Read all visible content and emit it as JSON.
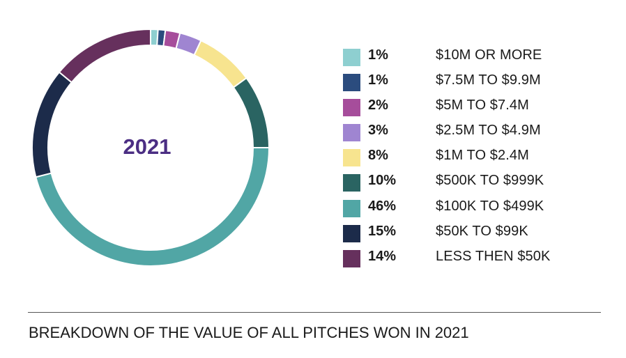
{
  "chart_data": {
    "type": "pie",
    "center_label": "2021",
    "slices": [
      {
        "label": "$10M OR MORE",
        "percent_label": "1%",
        "value": 1,
        "color": "#8ecfd0"
      },
      {
        "label": "$7.5M TO $9.9M",
        "percent_label": "1%",
        "value": 1,
        "color": "#2b4c7e"
      },
      {
        "label": "$5M TO $7.4M",
        "percent_label": "2%",
        "value": 2,
        "color": "#a64d9b"
      },
      {
        "label": "$2.5M TO $4.9M",
        "percent_label": "3%",
        "value": 3,
        "color": "#9f85d1"
      },
      {
        "label": "$1M TO $2.4M",
        "percent_label": "8%",
        "value": 8,
        "color": "#f7e48f"
      },
      {
        "label": "$500K TO $999K",
        "percent_label": "10%",
        "value": 10,
        "color": "#2a6462"
      },
      {
        "label": "$100K TO $499K",
        "percent_label": "46%",
        "value": 46,
        "color": "#51a6a5"
      },
      {
        "label": "$50K TO $99K",
        "percent_label": "15%",
        "value": 15,
        "color": "#1c2b4a"
      },
      {
        "label": "LESS THEN $50K",
        "percent_label": "14%",
        "value": 14,
        "color": "#66305d"
      }
    ],
    "center_label_color": "#4b2e83"
  },
  "caption": "BREAKDOWN OF THE VALUE OF ALL PITCHES WON IN 2021"
}
